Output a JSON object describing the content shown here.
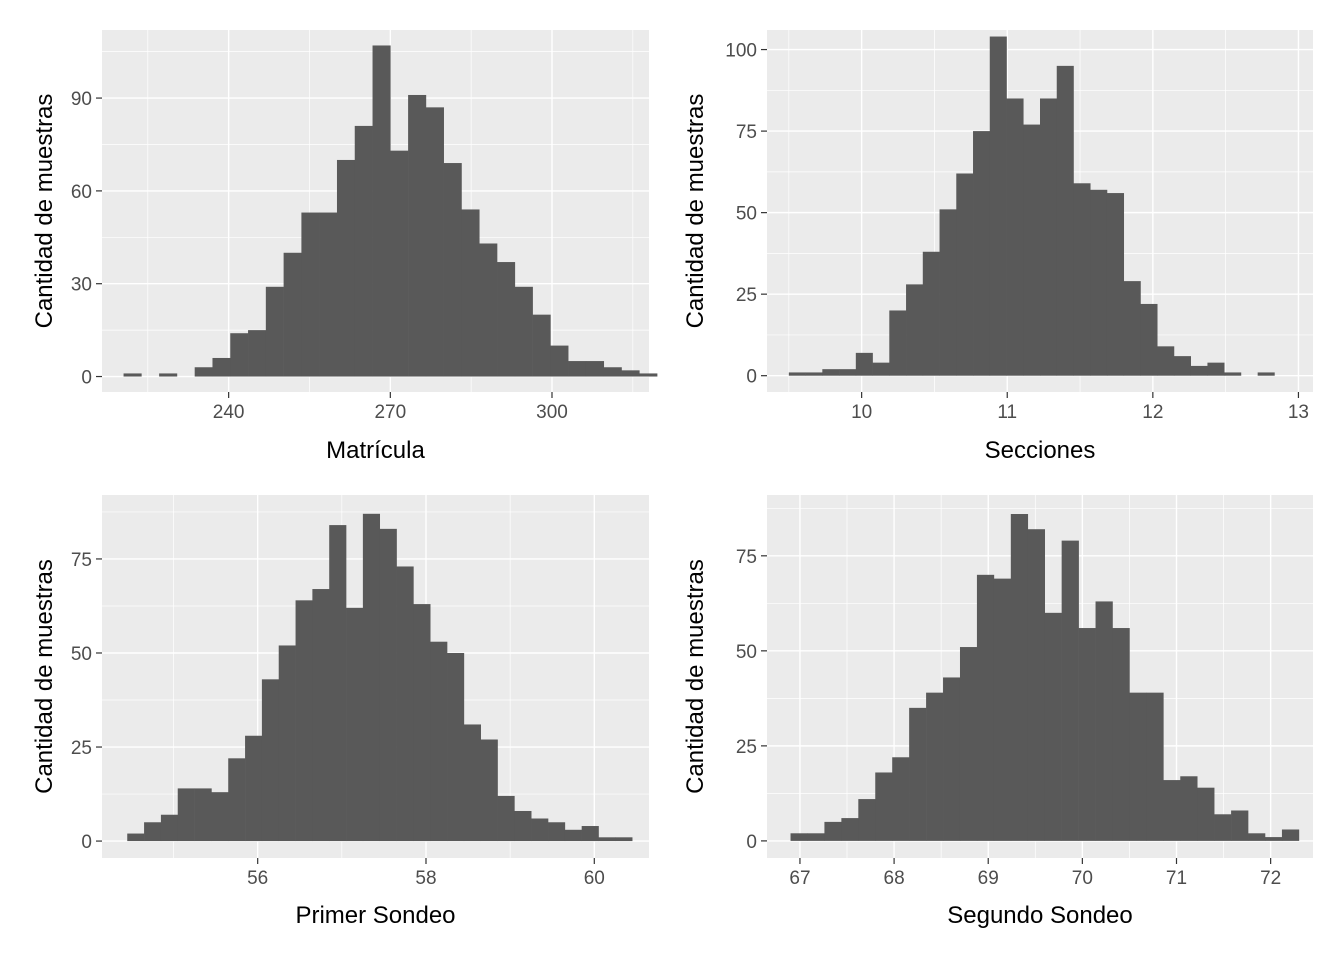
{
  "chart_data": [
    {
      "type": "bar",
      "subtype": "histogram",
      "xlabel": "Matrícula",
      "ylabel": "Cantidad de muestras",
      "xlim": [
        216.5,
        318
      ],
      "ylim": [
        -5,
        112
      ],
      "xticks": [
        240,
        270,
        300
      ],
      "xtick_labels": [
        "240",
        "270",
        "300"
      ],
      "yticks": [
        0,
        30,
        60,
        90
      ],
      "ytick_labels": [
        "0",
        "30",
        "60",
        "90"
      ],
      "bin_start": 220.5,
      "bin_width": 3.3,
      "values": [
        1,
        0,
        1,
        0,
        3,
        6,
        14,
        15,
        29,
        40,
        53,
        53,
        70,
        81,
        107,
        73,
        91,
        87,
        69,
        54,
        43,
        37,
        29,
        20,
        10,
        5,
        5,
        3,
        2,
        1
      ],
      "grid": true,
      "legend": "none"
    },
    {
      "type": "bar",
      "subtype": "histogram",
      "xlabel": "Secciones",
      "ylabel": "Cantidad de muestras",
      "xlim": [
        9.35,
        13.1
      ],
      "ylim": [
        -5,
        106
      ],
      "xticks": [
        10,
        11,
        12,
        13
      ],
      "xtick_labels": [
        "10",
        "11",
        "12",
        "13"
      ],
      "yticks": [
        0,
        25,
        50,
        75,
        100
      ],
      "ytick_labels": [
        "0",
        "25",
        "50",
        "75",
        "100"
      ],
      "bin_start": 9.5,
      "bin_width": 0.115,
      "values": [
        1,
        1,
        2,
        2,
        7,
        4,
        20,
        28,
        38,
        51,
        62,
        75,
        104,
        85,
        77,
        85,
        95,
        59,
        57,
        56,
        29,
        22,
        9,
        6,
        3,
        4,
        1,
        0,
        1,
        0
      ],
      "grid": true,
      "legend": "none"
    },
    {
      "type": "bar",
      "subtype": "histogram",
      "xlabel": "Primer Sondeo",
      "ylabel": "Cantidad de muestras",
      "xlim": [
        54.15,
        60.65
      ],
      "ylim": [
        -4.5,
        92
      ],
      "xticks": [
        56,
        58,
        60
      ],
      "xtick_labels": [
        "56",
        "58",
        "60"
      ],
      "yticks": [
        0,
        25,
        50,
        75
      ],
      "ytick_labels": [
        "0",
        "25",
        "50",
        "75"
      ],
      "bin_start": 54.45,
      "bin_width": 0.2,
      "values": [
        2,
        5,
        7,
        14,
        14,
        13,
        22,
        28,
        43,
        52,
        64,
        67,
        84,
        62,
        87,
        83,
        73,
        63,
        53,
        50,
        31,
        27,
        12,
        8,
        6,
        5,
        3,
        4,
        1,
        1
      ],
      "grid": true,
      "legend": "none"
    },
    {
      "type": "bar",
      "subtype": "histogram",
      "xlabel": "Segundo Sondeo",
      "ylabel": "Cantidad de muestras",
      "xlim": [
        66.65,
        72.45
      ],
      "ylim": [
        -4.5,
        91
      ],
      "xticks": [
        67,
        68,
        69,
        70,
        71,
        72
      ],
      "xtick_labels": [
        "67",
        "68",
        "69",
        "70",
        "71",
        "72"
      ],
      "yticks": [
        0,
        25,
        50,
        75
      ],
      "ytick_labels": [
        "0",
        "25",
        "50",
        "75"
      ],
      "bin_start": 66.9,
      "bin_width": 0.18,
      "values": [
        2,
        2,
        5,
        6,
        11,
        18,
        22,
        35,
        39,
        43,
        51,
        70,
        69,
        86,
        82,
        60,
        79,
        56,
        63,
        56,
        39,
        39,
        16,
        17,
        14,
        7,
        8,
        2,
        1,
        3
      ],
      "grid": true,
      "legend": "none"
    }
  ]
}
